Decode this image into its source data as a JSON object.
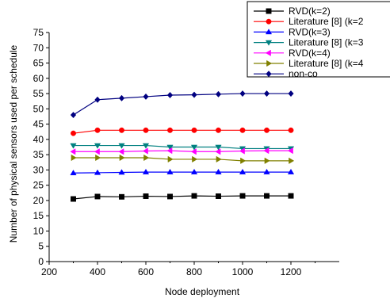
{
  "chart_data": {
    "type": "line",
    "title": "",
    "xlabel": "Node deployment",
    "ylabel": "Number of physical sensors used per schedule",
    "xlim": [
      200,
      1400
    ],
    "ylim": [
      0,
      75
    ],
    "xticks": [
      200,
      400,
      600,
      800,
      1000,
      1200
    ],
    "yticks": [
      0,
      5,
      10,
      15,
      20,
      25,
      30,
      35,
      40,
      45,
      50,
      55,
      60,
      65,
      70,
      75
    ],
    "grid": false,
    "legend_position": "top-right",
    "x": [
      300,
      400,
      500,
      600,
      700,
      800,
      900,
      1000,
      1100,
      1200
    ],
    "series": [
      {
        "name": "RVD(k=2)",
        "color": "#000000",
        "marker": "square",
        "values": [
          20.5,
          21.3,
          21.2,
          21.4,
          21.3,
          21.5,
          21.4,
          21.5,
          21.5,
          21.5
        ]
      },
      {
        "name": "Literature [8] (k=2",
        "color": "#ff0000",
        "marker": "circle",
        "values": [
          42.0,
          43.0,
          43.0,
          43.0,
          43.0,
          43.0,
          43.0,
          43.0,
          43.0,
          43.0
        ]
      },
      {
        "name": "RVD(k=3)",
        "color": "#0000ff",
        "marker": "triangle-up",
        "values": [
          29.0,
          29.1,
          29.2,
          29.3,
          29.3,
          29.3,
          29.3,
          29.3,
          29.3,
          29.3
        ]
      },
      {
        "name": "Literature [8] (k=3",
        "color": "#008080",
        "marker": "triangle-down",
        "values": [
          38.0,
          38.0,
          38.0,
          38.0,
          37.5,
          37.5,
          37.5,
          37.0,
          37.0,
          37.0
        ]
      },
      {
        "name": "RVD(k=4)",
        "color": "#ff00ff",
        "marker": "triangle-left",
        "values": [
          36.0,
          36.0,
          36.0,
          36.2,
          36.3,
          36.0,
          36.0,
          36.2,
          36.3,
          36.3
        ]
      },
      {
        "name": "Literature [8] (k=4",
        "color": "#808000",
        "marker": "triangle-right",
        "values": [
          34.0,
          34.0,
          34.0,
          34.0,
          33.5,
          33.5,
          33.5,
          33.0,
          33.0,
          33.0
        ]
      },
      {
        "name": "non-co",
        "color": "#000080",
        "marker": "diamond",
        "values": [
          48.0,
          53.0,
          53.5,
          54.0,
          54.5,
          54.6,
          54.8,
          55.0,
          55.0,
          55.0
        ]
      }
    ]
  }
}
